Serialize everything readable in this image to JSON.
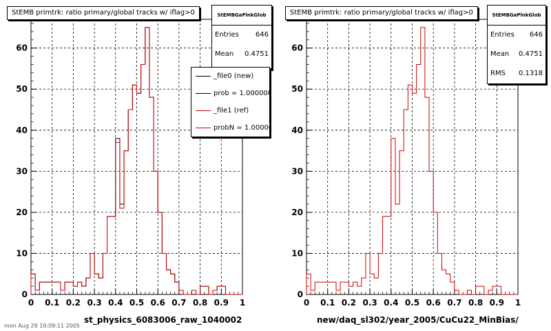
{
  "colors": {
    "new": "#000000",
    "ref": "#cc0000",
    "grid": "#000000"
  },
  "panels": [
    {
      "title": "StEMB primtrk: ratio primary/global tracks w/ iflag>0",
      "stats": {
        "header": "StEMBGaPlnkGlob",
        "rows": [
          {
            "label": "Entries",
            "value": "646"
          },
          {
            "label": "Mean",
            "value": "0.4751"
          }
        ]
      },
      "legend": [
        {
          "label": "_file0 (new)",
          "color": "#000000"
        },
        {
          "label": "prob = 1.000000",
          "color": "#000000"
        },
        {
          "label": "_file1 (ref)",
          "color": "#cc0000"
        },
        {
          "label": "probN = 1.000000",
          "color": "#cc0000"
        }
      ],
      "xlabel": "st_physics_6083006_raw_1040002"
    },
    {
      "title": "StEMB primtrk: ratio primary/global tracks w/ iflag>0",
      "stats": {
        "header": "StEMBGaPlnkGlob",
        "rows": [
          {
            "label": "Entries",
            "value": "646"
          },
          {
            "label": "Mean",
            "value": "0.4751"
          },
          {
            "label": "RMS",
            "value": "0.1318"
          }
        ]
      },
      "xlabel": "new/daq_sl302/year_2005/CuCu22_MinBias/"
    }
  ],
  "footer": "mon Aug 29 10:09:11 2005",
  "chart_data": [
    {
      "type": "histogram",
      "title": "StEMB primtrk: ratio primary/global tracks w/ iflag>0",
      "xlabel": "st_physics_6083006_raw_1040002",
      "xlim": [
        0,
        1
      ],
      "ylim": [
        0,
        67
      ],
      "xticks": [
        0,
        0.1,
        0.2,
        0.3,
        0.4,
        0.5,
        0.6,
        0.7,
        0.8,
        0.9,
        1
      ],
      "yticks": [
        0,
        10,
        20,
        30,
        40,
        50,
        60
      ],
      "grid": true,
      "bins": 50,
      "series": [
        {
          "name": "_file0 (new)",
          "values": [
            5,
            1,
            3,
            3,
            3,
            3,
            3,
            1,
            3,
            3,
            2,
            3,
            2,
            4,
            10,
            5,
            4,
            10,
            19,
            19,
            38,
            22,
            35,
            45,
            51,
            49,
            56,
            65,
            48,
            30,
            20,
            10,
            6,
            5,
            3,
            1,
            0,
            0,
            1,
            0,
            2,
            2,
            0,
            1,
            2,
            2,
            0,
            0,
            0,
            0
          ]
        },
        {
          "name": "_file1 (ref)",
          "values": [
            5,
            1,
            3,
            3,
            3,
            3,
            3,
            1,
            3,
            3,
            2,
            3,
            2,
            4,
            10,
            5,
            4,
            10,
            19,
            19,
            37,
            21,
            35,
            45,
            51,
            49,
            56,
            65,
            48,
            30,
            20,
            10,
            6,
            5,
            3,
            1,
            0,
            0,
            1,
            0,
            2,
            2,
            0,
            1,
            2,
            2,
            0,
            0,
            0,
            0
          ]
        }
      ]
    },
    {
      "type": "histogram",
      "title": "StEMB primtrk: ratio primary/global tracks w/ iflag>0",
      "xlabel": "new/daq_sl302/year_2005/CuCu22_MinBias/",
      "xlim": [
        0,
        1
      ],
      "ylim": [
        0,
        67
      ],
      "xticks": [
        0,
        0.1,
        0.2,
        0.3,
        0.4,
        0.5,
        0.6,
        0.7,
        0.8,
        0.9,
        1
      ],
      "yticks": [
        0,
        10,
        20,
        30,
        40,
        50,
        60
      ],
      "grid": true,
      "bins": 50,
      "series": [
        {
          "name": "_file1 (ref)",
          "values": [
            5,
            1,
            3,
            3,
            3,
            3,
            3,
            1,
            3,
            3,
            2,
            3,
            2,
            4,
            10,
            5,
            4,
            10,
            19,
            19,
            38,
            22,
            35,
            45,
            51,
            49,
            56,
            65,
            48,
            30,
            20,
            10,
            6,
            5,
            3,
            1,
            0,
            0,
            1,
            0,
            2,
            2,
            0,
            1,
            2,
            2,
            0,
            0,
            0,
            0
          ]
        }
      ]
    }
  ]
}
